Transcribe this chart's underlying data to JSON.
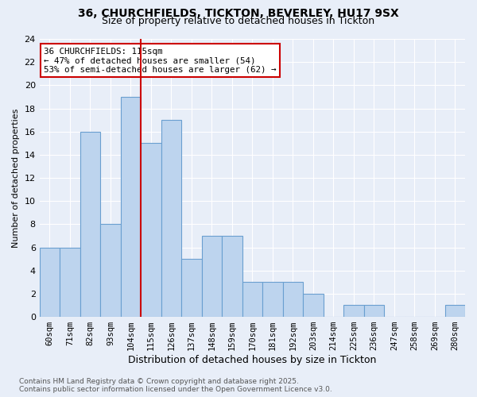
{
  "title1": "36, CHURCHFIELDS, TICKTON, BEVERLEY, HU17 9SX",
  "title2": "Size of property relative to detached houses in Tickton",
  "xlabel": "Distribution of detached houses by size in Tickton",
  "ylabel": "Number of detached properties",
  "bar_labels": [
    "60sqm",
    "71sqm",
    "82sqm",
    "93sqm",
    "104sqm",
    "115sqm",
    "126sqm",
    "137sqm",
    "148sqm",
    "159sqm",
    "170sqm",
    "181sqm",
    "192sqm",
    "203sqm",
    "214sqm",
    "225sqm",
    "236sqm",
    "247sqm",
    "258sqm",
    "269sqm",
    "280sqm"
  ],
  "bar_values": [
    6,
    6,
    16,
    8,
    19,
    15,
    17,
    5,
    7,
    7,
    3,
    3,
    3,
    2,
    0,
    1,
    1,
    0,
    0,
    0,
    1
  ],
  "bar_color": "#bdd4ee",
  "bar_edge_color": "#6a9fd0",
  "vline_x": 4.5,
  "vline_color": "#cc0000",
  "annotation_text": "36 CHURCHFIELDS: 115sqm\n← 47% of detached houses are smaller (54)\n53% of semi-detached houses are larger (62) →",
  "annotation_box_color": "#ffffff",
  "annotation_box_edge": "#cc0000",
  "ylim": [
    0,
    24
  ],
  "yticks": [
    0,
    2,
    4,
    6,
    8,
    10,
    12,
    14,
    16,
    18,
    20,
    22,
    24
  ],
  "footnote": "Contains HM Land Registry data © Crown copyright and database right 2025.\nContains public sector information licensed under the Open Government Licence v3.0.",
  "bg_color": "#e8eef8",
  "grid_color": "#ffffff",
  "title1_fontsize": 10,
  "title2_fontsize": 9
}
